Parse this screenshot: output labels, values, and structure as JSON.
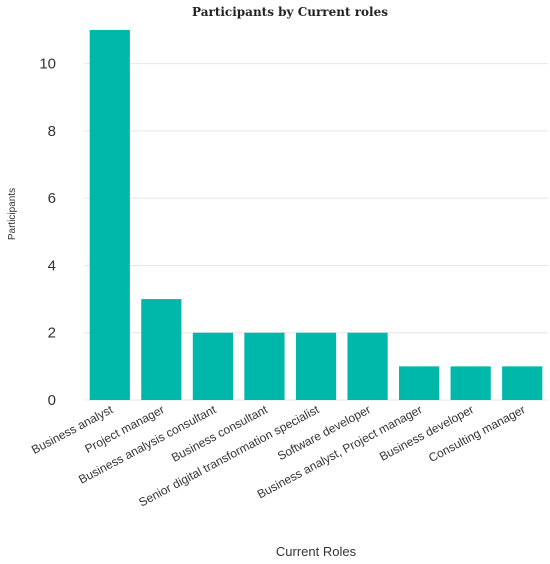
{
  "chart_data": {
    "type": "bar",
    "title": "Participants by Current roles",
    "xlabel": "Current Roles",
    "ylabel": "Participants",
    "categories": [
      "Business analyst",
      "Project manager",
      "Business analysis consultant",
      "Business consultant",
      "Senior digital transformation specialist",
      "Software developer",
      "Business analyst, Project manager",
      "Business developer",
      "Consulting manager"
    ],
    "values": [
      11,
      3,
      2,
      2,
      2,
      2,
      1,
      1,
      1
    ],
    "ylim": [
      0,
      11
    ],
    "yticks": [
      0,
      2,
      4,
      6,
      8,
      10
    ],
    "grid": true,
    "bar_color": "#00b8a9"
  }
}
